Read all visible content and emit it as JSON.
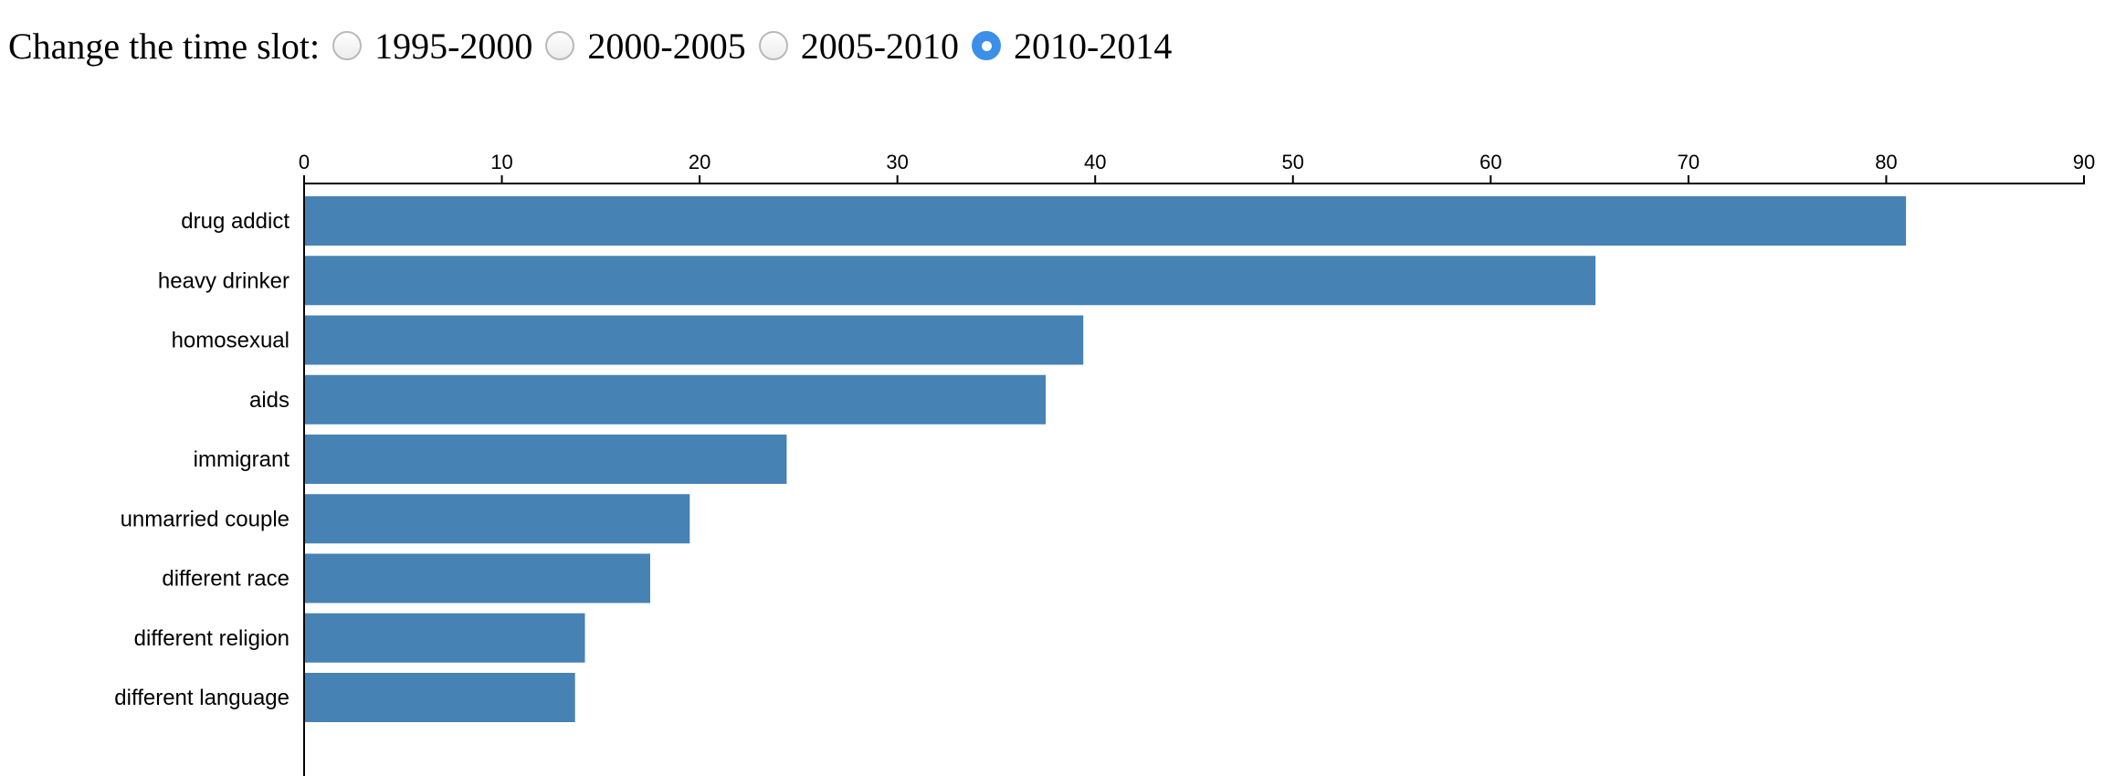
{
  "controls": {
    "prompt": "Change the time slot:",
    "options": [
      {
        "label": "1995-2000",
        "checked": false
      },
      {
        "label": "2000-2005",
        "checked": false
      },
      {
        "label": "2005-2010",
        "checked": false
      },
      {
        "label": "2010-2014",
        "checked": true
      }
    ]
  },
  "chart_data": {
    "type": "bar",
    "orientation": "horizontal",
    "categories": [
      "drug addict",
      "heavy drinker",
      "homosexual",
      "aids",
      "immigrant",
      "unmarried couple",
      "different race",
      "different religion",
      "different language"
    ],
    "values": [
      81.0,
      65.3,
      39.4,
      37.5,
      24.4,
      19.5,
      17.5,
      14.2,
      13.7
    ],
    "xlim": [
      0,
      90
    ],
    "x_ticks": [
      0,
      10,
      20,
      30,
      40,
      50,
      60,
      70,
      80,
      90
    ],
    "x_axis_position": "top",
    "title": "",
    "xlabel": "",
    "ylabel": "",
    "grid": false,
    "bar_color": "#4682b4"
  }
}
